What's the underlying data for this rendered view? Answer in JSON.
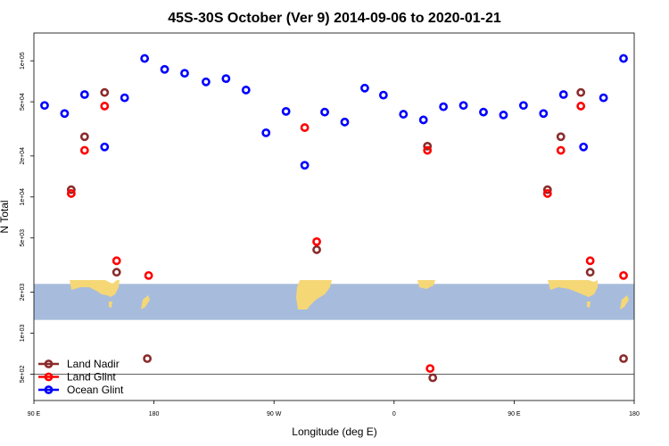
{
  "chart_data": {
    "type": "scatter",
    "title": "45S-30S October (Ver 9)   2014-09-06 to 2020-01-21",
    "xlabel": "Longitude (deg E)",
    "ylabel": "N Total",
    "y_scale": "log",
    "xlim": [
      90,
      540
    ],
    "ylim": [
      320,
      160000
    ],
    "x_ticks": [
      {
        "value": 90,
        "label": "90 E"
      },
      {
        "value": 180,
        "label": "180"
      },
      {
        "value": 270,
        "label": "90 W"
      },
      {
        "value": 360,
        "label": "0"
      },
      {
        "value": 450,
        "label": "90 E"
      },
      {
        "value": 540,
        "label": "180"
      }
    ],
    "y_ticks": [
      {
        "value": 500,
        "label": "5e+02"
      },
      {
        "value": 1000,
        "label": "1e+03"
      },
      {
        "value": 2000,
        "label": "2e+03"
      },
      {
        "value": 5000,
        "label": "5e+03"
      },
      {
        "value": 10000,
        "label": "1e+04"
      },
      {
        "value": 20000,
        "label": "2e+04"
      },
      {
        "value": 50000,
        "label": "5e+04"
      },
      {
        "value": 100000,
        "label": "1e+05"
      }
    ],
    "reference_line": 500,
    "map_band": {
      "y_top": 2300,
      "y_bottom": 1250
    },
    "legend_position": "bottom-left",
    "series": [
      {
        "name": "Land Nadir",
        "color": "#8b2c2c",
        "points": [
          [
            118,
            11300
          ],
          [
            128,
            27700
          ],
          [
            143,
            58500
          ],
          [
            152,
            2800
          ],
          [
            175,
            650
          ],
          [
            302,
            4100
          ],
          [
            385,
            23600
          ],
          [
            389,
            470
          ],
          [
            475,
            11300
          ],
          [
            485,
            27700
          ],
          [
            500,
            58500
          ],
          [
            507,
            2800
          ],
          [
            532,
            650
          ]
        ]
      },
      {
        "name": "Land Glint",
        "color": "#ff0000",
        "points": [
          [
            118,
            10600
          ],
          [
            128,
            22000
          ],
          [
            143,
            46500
          ],
          [
            152,
            3400
          ],
          [
            176,
            2650
          ],
          [
            293,
            32300
          ],
          [
            302,
            4700
          ],
          [
            385,
            22000
          ],
          [
            387,
            550
          ],
          [
            475,
            10600
          ],
          [
            485,
            22000
          ],
          [
            500,
            46500
          ],
          [
            507,
            3400
          ],
          [
            532,
            2650
          ]
        ]
      },
      {
        "name": "Ocean Glint",
        "color": "#0000ff",
        "points": [
          [
            98,
            47000
          ],
          [
            113,
            41000
          ],
          [
            128,
            56500
          ],
          [
            143,
            23300
          ],
          [
            158,
            53500
          ],
          [
            173,
            104000
          ],
          [
            188,
            86500
          ],
          [
            203,
            81000
          ],
          [
            219,
            70000
          ],
          [
            234,
            74000
          ],
          [
            249,
            61000
          ],
          [
            264,
            29600
          ],
          [
            279,
            42500
          ],
          [
            293,
            17100
          ],
          [
            308,
            42000
          ],
          [
            323,
            35500
          ],
          [
            338,
            63000
          ],
          [
            352,
            56000
          ],
          [
            367,
            40500
          ],
          [
            382,
            36800
          ],
          [
            397,
            46000
          ],
          [
            412,
            47000
          ],
          [
            427,
            42000
          ],
          [
            442,
            40000
          ],
          [
            457,
            47000
          ],
          [
            472,
            41000
          ],
          [
            487,
            56500
          ],
          [
            502,
            23300
          ],
          [
            517,
            53500
          ],
          [
            532,
            104000
          ]
        ]
      }
    ]
  }
}
